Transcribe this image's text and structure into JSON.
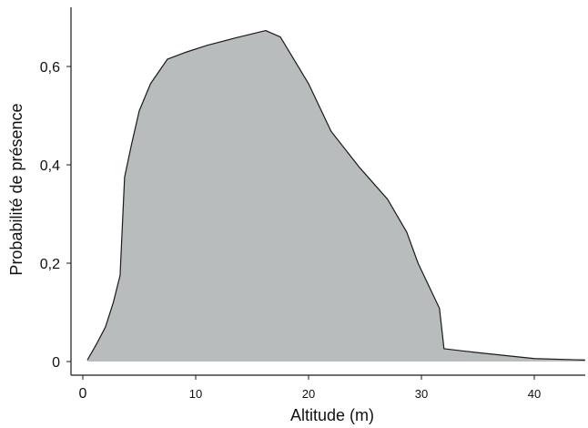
{
  "chart_data": {
    "type": "area",
    "title": "",
    "xlabel": "Altitude (m)",
    "ylabel": "Probabilité de présence",
    "xlim": [
      0,
      44.5
    ],
    "ylim": [
      0,
      0.7
    ],
    "x_ticks": [
      0,
      10,
      20,
      30,
      40
    ],
    "x_tick_labels": [
      "0",
      "10",
      "20",
      "30",
      "40"
    ],
    "y_ticks": [
      0,
      0.2,
      0.4,
      0.6
    ],
    "y_tick_labels": [
      "0",
      "0,2",
      "0,4",
      "0,6"
    ],
    "grid": false,
    "legend": "none",
    "colors": {
      "fill": "#b9bcbd",
      "line": "#1a1a1a",
      "axis": "#1a1a1a"
    },
    "series": [
      {
        "values_x": [
          0.4,
          1.2,
          2,
          2.7,
          3.3,
          3.7,
          4.3,
          5,
          6,
          7.5,
          9,
          11,
          13.5,
          16.2,
          17.5,
          20,
          22,
          24.5,
          27,
          28.7,
          29.7,
          31.6,
          32,
          35,
          40,
          44.5
        ],
        "values_y": [
          0.003,
          0.035,
          0.07,
          0.12,
          0.175,
          0.375,
          0.44,
          0.51,
          0.565,
          0.615,
          0.628,
          0.643,
          0.658,
          0.673,
          0.66,
          0.565,
          0.468,
          0.395,
          0.33,
          0.263,
          0.2,
          0.108,
          0.026,
          0.018,
          0.006,
          0.003
        ]
      }
    ]
  }
}
